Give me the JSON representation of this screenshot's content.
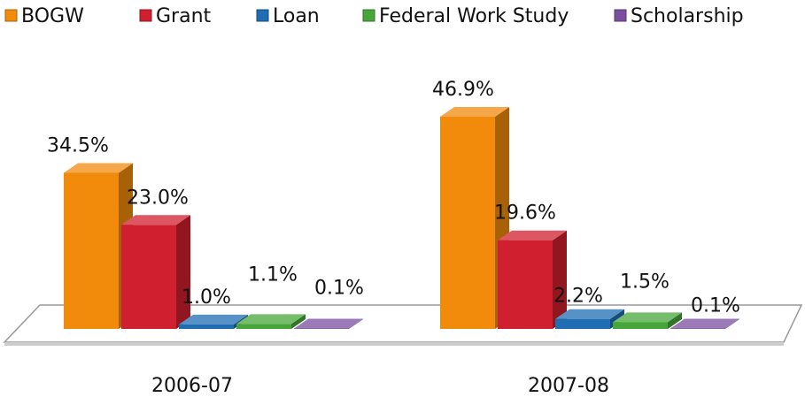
{
  "chart_data": {
    "type": "bar3d",
    "categories": [
      "2006-07",
      "2007-08"
    ],
    "series": [
      {
        "name": "BOGW",
        "color": "#f28a0c",
        "values": [
          34.5,
          46.9
        ],
        "value_labels": [
          "34.5%",
          "46.9%"
        ]
      },
      {
        "name": "Grant",
        "color": "#d01f2e",
        "values": [
          23.0,
          19.6
        ],
        "value_labels": [
          "23.0%",
          "19.6%"
        ]
      },
      {
        "name": "Loan",
        "color": "#1f6db3",
        "values": [
          1.0,
          2.2
        ],
        "value_labels": [
          "1.0%",
          "2.2%"
        ]
      },
      {
        "name": "Federal Work Study",
        "color": "#47a63a",
        "values": [
          1.1,
          1.5
        ],
        "value_labels": [
          "1.1%",
          "1.5%"
        ]
      },
      {
        "name": "Scholarship",
        "color": "#7a4f9f",
        "values": [
          0.1,
          0.1
        ],
        "value_labels": [
          "0.1%",
          "0.1%"
        ]
      }
    ],
    "legend": "top"
  }
}
